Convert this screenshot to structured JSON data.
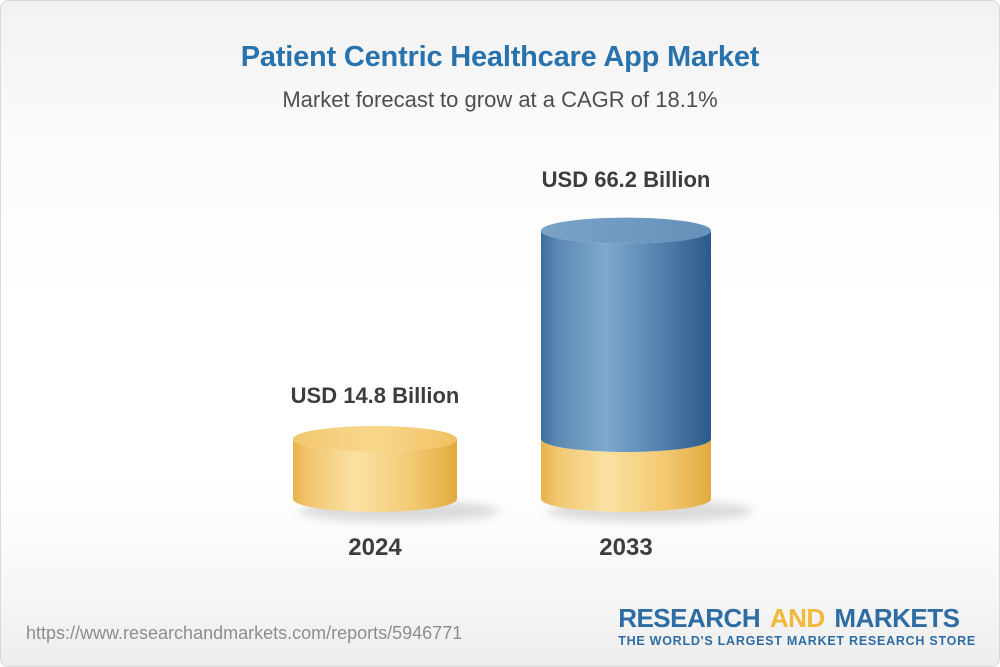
{
  "chart_data": {
    "type": "bar",
    "variant": "3d-cylinder-stacked",
    "title": "Patient Centric Healthcare App Market",
    "subtitle": "Market forecast to grow at a CAGR of 18.1%",
    "cagr_percent": 18.1,
    "unit": "USD Billion",
    "categories": [
      "2024",
      "2033"
    ],
    "values": [
      14.8,
      66.2
    ],
    "ylim": [
      0,
      70
    ],
    "grid": false,
    "legend": false,
    "bars": [
      {
        "year": "2024",
        "value": 14.8,
        "value_label": "USD 14.8 Billion",
        "segments": [
          {
            "color_key": "gold",
            "value": 14.8
          }
        ]
      },
      {
        "year": "2033",
        "value": 66.2,
        "value_label": "USD 66.2 Billion",
        "segments": [
          {
            "color_key": "gold",
            "value": 14.8
          },
          {
            "color_key": "blue",
            "value": 51.4
          }
        ]
      }
    ]
  },
  "colors": {
    "title_blue": "#2873ae",
    "subtitle_gray": "#4e4e4e",
    "label_dark": "#3d3d3d",
    "bar_gold": "#f5cd7c",
    "bar_gold_dark": "#e5ab42",
    "bar_blue": "#6f9ac1",
    "bar_blue_dark": "#2c5b8b",
    "url_gray": "#8d8d8d",
    "logo_blue": "#2e6da4",
    "logo_gold": "#f0b93a"
  },
  "footer": {
    "url": "https://www.researchandmarkets.com/reports/5946771",
    "logo": {
      "word1": "RESEARCH",
      "word2": "AND",
      "word3": "MARKETS",
      "tagline": "THE WORLD'S LARGEST MARKET RESEARCH STORE"
    }
  }
}
